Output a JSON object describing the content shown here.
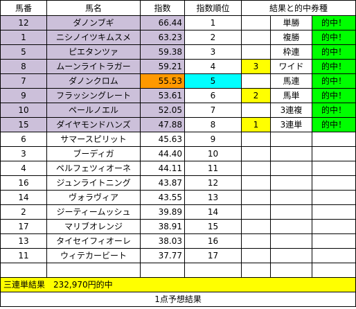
{
  "headers": {
    "umaban": "馬番",
    "bamei": "馬名",
    "shisu": "指数",
    "juni": "指数順位",
    "kekka": "結果と的中券種"
  },
  "rows": [
    {
      "umaban": "12",
      "name": "ダノンブギ",
      "shisu": "66.44",
      "juni": "1",
      "res": "",
      "ken": "単勝",
      "hit": "的中！"
    },
    {
      "umaban": "1",
      "name": "ニシノイツキムスメ",
      "shisu": "63.23",
      "juni": "2",
      "res": "",
      "ken": "複勝",
      "hit": "的中！"
    },
    {
      "umaban": "5",
      "name": "ピエタンツァ",
      "shisu": "59.38",
      "juni": "3",
      "res": "",
      "ken": "枠連",
      "hit": "的中！"
    },
    {
      "umaban": "8",
      "name": "ムーンライトラガー",
      "shisu": "59.21",
      "juni": "4",
      "res": "3",
      "ken": "ワイド",
      "hit": "的中！"
    },
    {
      "umaban": "7",
      "name": "ダノンクロム",
      "shisu": "55.53",
      "juni": "5",
      "res": "",
      "ken": "馬連",
      "hit": "的中！"
    },
    {
      "umaban": "9",
      "name": "フラッシングレート",
      "shisu": "53.61",
      "juni": "6",
      "res": "2",
      "ken": "馬単",
      "hit": "的中！"
    },
    {
      "umaban": "10",
      "name": "ペールノエル",
      "shisu": "52.05",
      "juni": "7",
      "res": "",
      "ken": "3連複",
      "hit": "的中！"
    },
    {
      "umaban": "15",
      "name": "ダイヤモンドハンズ",
      "shisu": "47.88",
      "juni": "8",
      "res": "1",
      "ken": "3連単",
      "hit": "的中！"
    },
    {
      "umaban": "6",
      "name": "サマースピリット",
      "shisu": "45.63",
      "juni": "9",
      "res": "",
      "ken": "",
      "hit": ""
    },
    {
      "umaban": "3",
      "name": "ブーディガ",
      "shisu": "44.40",
      "juni": "10",
      "res": "",
      "ken": "",
      "hit": ""
    },
    {
      "umaban": "4",
      "name": "ペルフェツィオーネ",
      "shisu": "44.11",
      "juni": "11",
      "res": "",
      "ken": "",
      "hit": ""
    },
    {
      "umaban": "16",
      "name": "ジュンライトニング",
      "shisu": "43.87",
      "juni": "12",
      "res": "",
      "ken": "",
      "hit": ""
    },
    {
      "umaban": "14",
      "name": "ヴォラヴィア",
      "shisu": "43.55",
      "juni": "13",
      "res": "",
      "ken": "",
      "hit": ""
    },
    {
      "umaban": "2",
      "name": "ジーティームッシュ",
      "shisu": "39.89",
      "juni": "14",
      "res": "",
      "ken": "",
      "hit": ""
    },
    {
      "umaban": "17",
      "name": "マリブオレンジ",
      "shisu": "38.91",
      "juni": "15",
      "res": "",
      "ken": "",
      "hit": ""
    },
    {
      "umaban": "13",
      "name": "タイセイフィオーレ",
      "shisu": "38.03",
      "juni": "16",
      "res": "",
      "ken": "",
      "hit": ""
    },
    {
      "umaban": "11",
      "name": "ウィテカービート",
      "shisu": "37.77",
      "juni": "17",
      "res": "",
      "ken": "",
      "hit": ""
    }
  ],
  "banner": "三連単結果　232,970円的中",
  "footer": "1点予想結果",
  "colors": {
    "lavender": "#ccc0da",
    "orange": "#ff9900",
    "cyan": "#00ffff",
    "yellow": "#ffff00",
    "green": "#00ff00"
  }
}
